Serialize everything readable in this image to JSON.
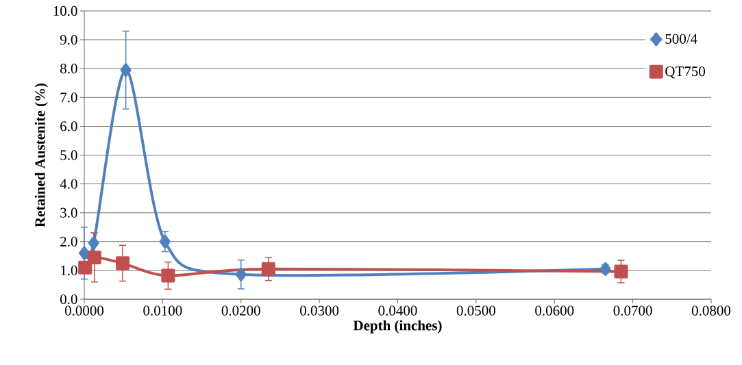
{
  "chart_data": {
    "type": "line",
    "xlabel": "Depth (inches)",
    "ylabel": "Retained Austenite (%)",
    "xlim": [
      0,
      0.08
    ],
    "xticks": [
      {
        "value": 0,
        "label": "0.0000"
      },
      {
        "value": 0.01,
        "label": "0.0100"
      },
      {
        "value": 0.02,
        "label": "0.0200"
      },
      {
        "value": 0.03,
        "label": "0.0300"
      },
      {
        "value": 0.04,
        "label": "0.0400"
      },
      {
        "value": 0.05,
        "label": "0.0500"
      },
      {
        "value": 0.06,
        "label": "0.0600"
      },
      {
        "value": 0.07,
        "label": "0.0700"
      },
      {
        "value": 0.08,
        "label": "0.0800"
      }
    ],
    "ylim": [
      0,
      10
    ],
    "yticks": [
      {
        "value": 0,
        "label": "0.0"
      },
      {
        "value": 1,
        "label": "1.0"
      },
      {
        "value": 2,
        "label": "2.0"
      },
      {
        "value": 3,
        "label": "3.0"
      },
      {
        "value": 4,
        "label": "4.0"
      },
      {
        "value": 5,
        "label": "5.0"
      },
      {
        "value": 6,
        "label": "6.0"
      },
      {
        "value": 7,
        "label": "7.0"
      },
      {
        "value": 8,
        "label": "8.0"
      },
      {
        "value": 9,
        "label": "9.0"
      },
      {
        "value": 10,
        "label": "10.0"
      }
    ],
    "grid": "y",
    "legend": "top right",
    "series": [
      {
        "name": "500/4",
        "color": "#4f81bd",
        "marker": "diamond",
        "x": [
          0.0,
          0.0012,
          0.0053,
          0.0103,
          0.02,
          0.0665
        ],
        "values": [
          1.6,
          1.95,
          7.95,
          2.0,
          0.86,
          1.05
        ],
        "errors": [
          0.9,
          0.35,
          1.35,
          0.35,
          0.5,
          0.15
        ]
      },
      {
        "name": "QT750",
        "color": "#c0504d",
        "marker": "square",
        "x": [
          0.0001,
          0.0013,
          0.0049,
          0.0107,
          0.0235,
          0.0685
        ],
        "values": [
          1.1,
          1.45,
          1.25,
          0.82,
          1.05,
          0.96
        ],
        "errors": [
          null,
          0.85,
          0.62,
          0.47,
          0.4,
          0.39
        ]
      }
    ]
  }
}
